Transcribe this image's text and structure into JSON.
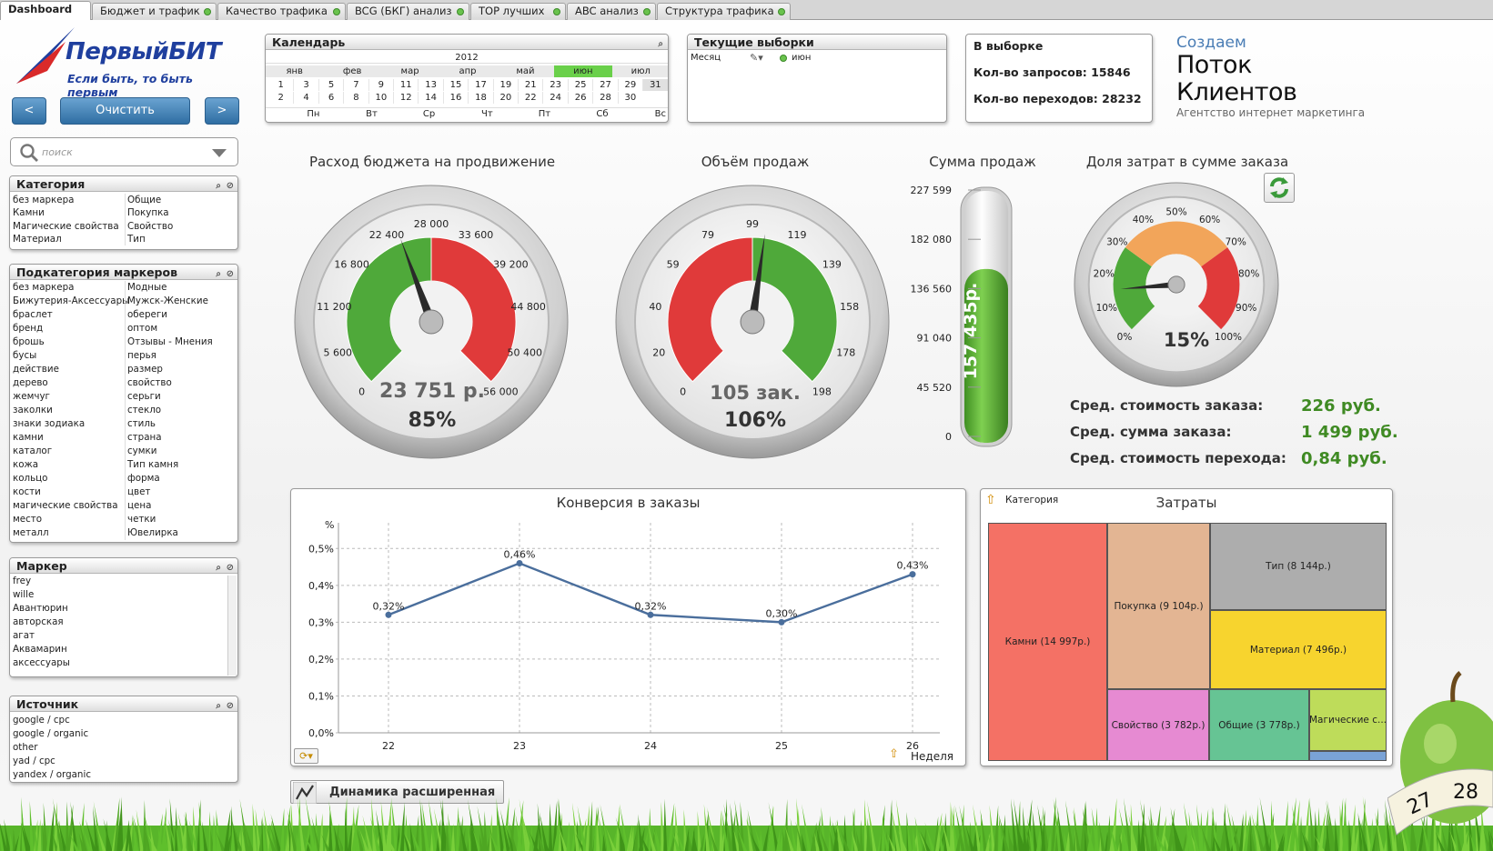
{
  "tabs": [
    {
      "label": "Dashboard",
      "active": true
    },
    {
      "label": "Бюджет и трафик"
    },
    {
      "label": "Качество трафика"
    },
    {
      "label": "BCG (БКГ) анализ"
    },
    {
      "label": "TOP лучших"
    },
    {
      "label": "ABC анализ"
    },
    {
      "label": "Структура трафика"
    }
  ],
  "logo": {
    "brand": "ПервыйБИТ",
    "slogan": "Если быть, то быть первым"
  },
  "nav": {
    "prev": "<",
    "clear": "Очистить",
    "next": ">"
  },
  "search": {
    "placeholder": "поиск"
  },
  "calendar": {
    "title": "Календарь",
    "year": "2012",
    "months": [
      "янв",
      "фев",
      "мар",
      "апр",
      "май",
      "июн",
      "июл"
    ],
    "row1": [
      "1",
      "3",
      "5",
      "7",
      "9",
      "11",
      "13",
      "15",
      "17",
      "19",
      "21",
      "23",
      "25",
      "27",
      "29",
      "31"
    ],
    "row2": [
      "2",
      "4",
      "6",
      "8",
      "10",
      "12",
      "14",
      "16",
      "18",
      "20",
      "22",
      "24",
      "26",
      "28",
      "30"
    ],
    "weekdays": [
      "Пн",
      "Вт",
      "Ср",
      "Чт",
      "Пт",
      "Сб",
      "Вс"
    ]
  },
  "current": {
    "title": "Текущие выборки",
    "field": "Месяц",
    "value": "июн"
  },
  "selection": {
    "title": "В выборке",
    "requests": "Кол-во запросов: 15846",
    "clicks": "Кол-во переходов: 28232"
  },
  "brand2": {
    "line1": "Создаем",
    "line2": "Поток Клиентов",
    "line3": "Агентство интернет маркетинга"
  },
  "lists": {
    "category": {
      "title": "Категория",
      "col1": [
        "без маркера",
        "Камни",
        "Магические свойства",
        "Материал"
      ],
      "col2": [
        "Общие",
        "Покупка",
        "Свойство",
        "Тип"
      ]
    },
    "subcategory": {
      "title": "Подкатегория маркеров",
      "col1": [
        "без маркера",
        "Бижутерия-Аксессуары",
        "браслет",
        "бренд",
        "брошь",
        "бусы",
        "действие",
        "дерево",
        "жемчуг",
        "заколки",
        "знаки зодиака",
        "камни",
        "каталог",
        "кожа",
        "кольцо",
        "кости",
        "магические свойства",
        "место",
        "металл"
      ],
      "col2": [
        "Модные",
        "Мужск-Женские",
        "обереги",
        "оптом",
        "Отзывы - Мнения",
        "перья",
        "размер",
        "свойство",
        "серьги",
        "стекло",
        "стиль",
        "страна",
        "сумки",
        "Тип камня",
        "форма",
        "цвет",
        "цена",
        "четки",
        "Ювелирка"
      ]
    },
    "marker": {
      "title": "Маркер",
      "col1": [
        "frey",
        "wille",
        "Авантюрин",
        "авторская",
        "агат",
        "Аквамарин",
        "аксессуары"
      ]
    },
    "source": {
      "title": "Источник",
      "col1": [
        "google / cpc",
        "google / organic",
        "other",
        "yad / cpc",
        "yandex / organic"
      ]
    }
  },
  "gauges": {
    "budget": {
      "title": "Расход бюджета на продвижение",
      "value": "23 751 р.",
      "percent": "85%",
      "level": 0.85,
      "ticks": [
        "0",
        "5 600",
        "11 200",
        "16 800",
        "22 400",
        "28 000",
        "33 600",
        "39 200",
        "44 800",
        "50 400",
        "56 000"
      ],
      "colors": {
        "low": "#4fa93a",
        "high": "#e03a3a"
      }
    },
    "sales": {
      "title": "Объём продаж",
      "value": "105 зак.",
      "percent": "106%",
      "level": 1.06,
      "ticks": [
        "0",
        "20",
        "40",
        "59",
        "79",
        "99",
        "119",
        "139",
        "158",
        "178",
        "198"
      ],
      "colors": {
        "low": "#e03a3a",
        "high": "#4fa93a"
      }
    },
    "sum": {
      "title": "Сумма продаж",
      "value": "157 435р.",
      "ticks": [
        "227 599",
        "182 080",
        "136 560",
        "91 040",
        "45 520",
        "0"
      ],
      "fill": 0.69
    },
    "share": {
      "title": "Доля затрат в сумме заказа",
      "percent": "15%",
      "level": 0.15,
      "ticks": [
        "0%",
        "10%",
        "20%",
        "30%",
        "40%",
        "50%",
        "60%",
        "70%",
        "80%",
        "90%",
        "100%"
      ]
    }
  },
  "stats": [
    {
      "label": "Сред. стоимость заказа:",
      "value": "226 руб."
    },
    {
      "label": "Сред. сумма заказа:",
      "value": "1 499 руб."
    },
    {
      "label": "Сред. стоимость перехода:",
      "value": "0,84 руб."
    }
  ],
  "conversion": {
    "title": "Конверсия в заказы",
    "unit": "%",
    "xlabel": "Неделя"
  },
  "treemap": {
    "title": "Затраты",
    "dim": "Категория",
    "cells": [
      {
        "label": "Камни (14 997р.)",
        "color": "#f47165"
      },
      {
        "label": "Покупка (9 104р.)",
        "color": "#e3b593"
      },
      {
        "label": "Тип (8 144р.)",
        "color": "#adadad"
      },
      {
        "label": "Материал (7 496р.)",
        "color": "#f7d42e"
      },
      {
        "label": "Свойство (3 782р.)",
        "color": "#e68ad2"
      },
      {
        "label": "Общие (3 778р.)",
        "color": "#66c494"
      },
      {
        "label": "Магические с...",
        "color": "#bedc5a"
      }
    ]
  },
  "dynamics": {
    "label": "Динамика расширенная"
  },
  "chart_data": {
    "type": "line",
    "title": "Конверсия в заказы",
    "xlabel": "Неделя",
    "ylabel": "%",
    "categories": [
      "22",
      "23",
      "24",
      "25",
      "26"
    ],
    "values": [
      0.32,
      0.46,
      0.32,
      0.3,
      0.43
    ],
    "data_labels": [
      "0,32%",
      "0,46%",
      "0,32%",
      "0,30%",
      "0,43%"
    ],
    "y_ticks": [
      "0,0%",
      "0,1%",
      "0,2%",
      "0,3%",
      "0,4%",
      "0,5%"
    ],
    "ylim": [
      0,
      0.55
    ],
    "grid": true,
    "color": "#4a6e9c"
  }
}
